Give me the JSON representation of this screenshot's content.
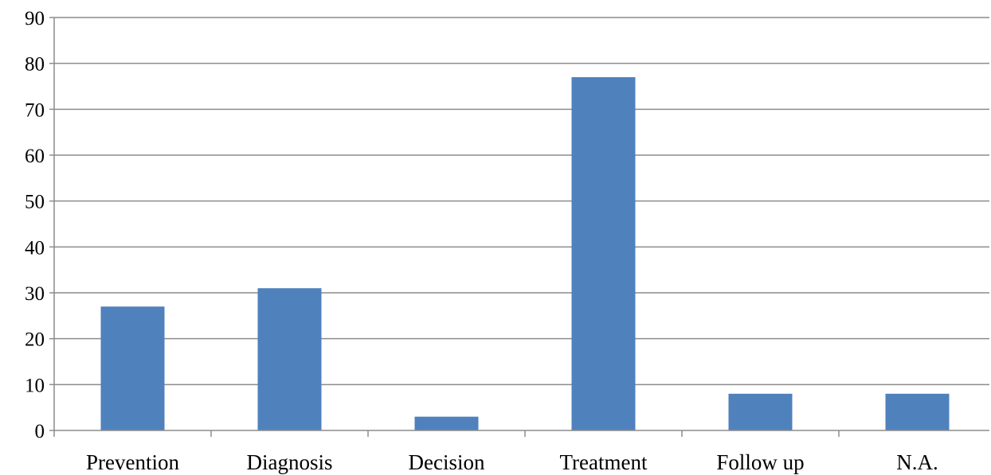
{
  "chart_data": {
    "type": "bar",
    "categories": [
      "Prevention",
      "Diagnosis",
      "Decision",
      "Treatment",
      "Follow up",
      "N.A."
    ],
    "values": [
      27,
      31,
      3,
      77,
      8,
      8
    ],
    "title": "",
    "xlabel": "",
    "ylabel": "",
    "ylim": [
      0,
      90
    ],
    "yticks": [
      0,
      10,
      20,
      30,
      40,
      50,
      60,
      70,
      80,
      90
    ],
    "grid": true,
    "legend": "none",
    "bar_color": "#4f81bd"
  }
}
